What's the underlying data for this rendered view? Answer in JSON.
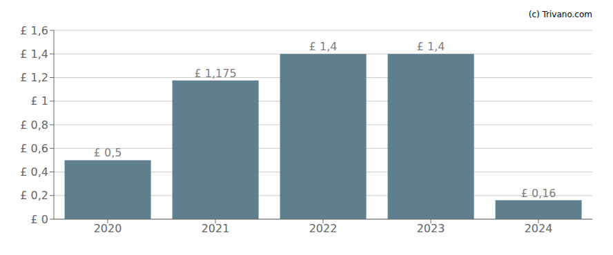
{
  "chart_data": {
    "type": "bar",
    "annotations": [
      "(c) Trivano.com"
    ],
    "categories": [
      "2020",
      "2021",
      "2022",
      "2023",
      "2024"
    ],
    "values": [
      0.5,
      1.175,
      1.4,
      1.4,
      0.16
    ],
    "value_labels": [
      "£ 0,5",
      "£ 1,175",
      "£ 1,4",
      "£ 1,4",
      "£ 0,16"
    ],
    "data_labels": true,
    "color": "#5f7f8f",
    "ylim": [
      0,
      1.6
    ],
    "yticks": [
      {
        "value": 0,
        "label": "£ 0"
      },
      {
        "value": 0.2,
        "label": "£ 0,2"
      },
      {
        "value": 0.4,
        "label": "£ 0,4"
      },
      {
        "value": 0.6,
        "label": "£ 0,6"
      },
      {
        "value": 0.8,
        "label": "£ 0,8"
      },
      {
        "value": 1.0,
        "label": "£ 1"
      },
      {
        "value": 1.2,
        "label": "£ 1,2"
      },
      {
        "value": 1.4,
        "label": "£ 1,4"
      },
      {
        "value": 1.6,
        "label": "£ 1,6"
      }
    ],
    "grid": true
  }
}
